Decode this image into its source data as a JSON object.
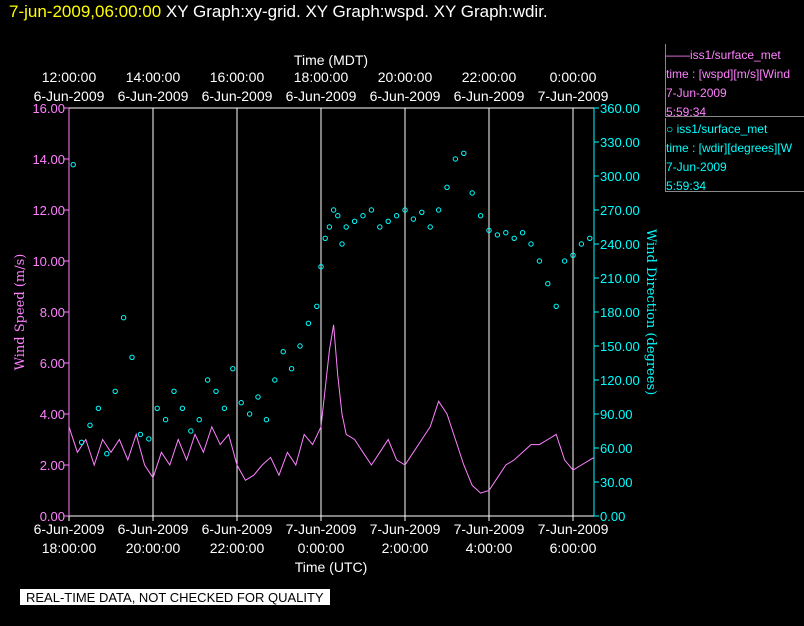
{
  "header": {
    "date": "7-jun-2009,06:00:00",
    "graphs": "XY Graph:xy-grid.  XY Graph:wspd.  XY Graph:wdir."
  },
  "legend": [
    {
      "marker": "——",
      "lines": [
        "iss1/surface_met",
        "time : [wspd][m/s][Wind",
        "7-Jun-2009",
        "5:59:34"
      ]
    },
    {
      "marker": "○",
      "lines": [
        "iss1/surface_met",
        "time : [wdir][degrees][W",
        "7-Jun-2009",
        "5:59:34"
      ]
    }
  ],
  "notice": "REAL-TIME DATA, NOT CHECKED FOR QUALITY",
  "colors": {
    "background": "#000000",
    "wspd": "#ff80ff",
    "wdir": "#00ffff",
    "grid": "#ffffff",
    "date": "#ffff00"
  },
  "chart_data": {
    "type": "line+scatter",
    "top_axis": {
      "label": "Time (MDT)",
      "ticks": [
        {
          "x": 0,
          "time": "12:00:00",
          "date": "6-Jun-2009"
        },
        {
          "x": 2,
          "time": "14:00:00",
          "date": "6-Jun-2009"
        },
        {
          "x": 4,
          "time": "16:00:00",
          "date": "6-Jun-2009"
        },
        {
          "x": 6,
          "time": "18:00:00",
          "date": "6-Jun-2009"
        },
        {
          "x": 8,
          "time": "20:00:00",
          "date": "6-Jun-2009"
        },
        {
          "x": 10,
          "time": "22:00:00",
          "date": "6-Jun-2009"
        },
        {
          "x": 12,
          "time": "0:00:00",
          "date": "7-Jun-2009"
        }
      ]
    },
    "bottom_axis": {
      "label": "Time (UTC)",
      "ticks": [
        {
          "x": 0,
          "date": "6-Jun-2009",
          "time": "18:00:00"
        },
        {
          "x": 2,
          "date": "6-Jun-2009",
          "time": "20:00:00"
        },
        {
          "x": 4,
          "date": "6-Jun-2009",
          "time": "22:00:00"
        },
        {
          "x": 6,
          "date": "7-Jun-2009",
          "time": "0:00:00"
        },
        {
          "x": 8,
          "date": "7-Jun-2009",
          "time": "2:00:00"
        },
        {
          "x": 10,
          "date": "7-Jun-2009",
          "time": "4:00:00"
        },
        {
          "x": 12,
          "date": "7-Jun-2009",
          "time": "6:00:00"
        }
      ]
    },
    "xlim": [
      0,
      12.5
    ],
    "y_left": {
      "label": "Wind Speed (m/s)",
      "ylim": [
        0,
        16
      ],
      "ticks": [
        "0.00",
        "2.00",
        "4.00",
        "6.00",
        "8.00",
        "10.00",
        "12.00",
        "14.00",
        "16.00"
      ]
    },
    "y_right": {
      "label": "Wind Direction (degrees)",
      "ylim": [
        0,
        360
      ],
      "ticks": [
        "0.00",
        "30.00",
        "60.00",
        "90.00",
        "120.00",
        "150.00",
        "180.00",
        "210.00",
        "240.00",
        "270.00",
        "300.00",
        "330.00",
        "360.00"
      ]
    },
    "grid": "vertical lines at each time tick",
    "series": [
      {
        "name": "iss1/surface_met wspd",
        "style": "line",
        "axis": "left",
        "points": [
          [
            0,
            3.5
          ],
          [
            0.2,
            2.5
          ],
          [
            0.4,
            3.0
          ],
          [
            0.6,
            2.0
          ],
          [
            0.8,
            3.0
          ],
          [
            1.0,
            2.5
          ],
          [
            1.2,
            3.0
          ],
          [
            1.4,
            2.2
          ],
          [
            1.6,
            3.2
          ],
          [
            1.8,
            2.0
          ],
          [
            2.0,
            1.5
          ],
          [
            2.2,
            2.5
          ],
          [
            2.4,
            2.0
          ],
          [
            2.6,
            3.0
          ],
          [
            2.8,
            2.2
          ],
          [
            3.0,
            3.2
          ],
          [
            3.2,
            2.5
          ],
          [
            3.4,
            3.5
          ],
          [
            3.6,
            2.8
          ],
          [
            3.8,
            3.2
          ],
          [
            4.0,
            2.0
          ],
          [
            4.2,
            1.4
          ],
          [
            4.4,
            1.6
          ],
          [
            4.6,
            2.0
          ],
          [
            4.8,
            2.3
          ],
          [
            5.0,
            1.6
          ],
          [
            5.2,
            2.5
          ],
          [
            5.4,
            2.0
          ],
          [
            5.6,
            3.2
          ],
          [
            5.8,
            2.8
          ],
          [
            6.0,
            3.5
          ],
          [
            6.1,
            5.0
          ],
          [
            6.2,
            6.5
          ],
          [
            6.3,
            7.5
          ],
          [
            6.4,
            5.5
          ],
          [
            6.5,
            4.0
          ],
          [
            6.6,
            3.2
          ],
          [
            6.8,
            3.0
          ],
          [
            7.0,
            2.5
          ],
          [
            7.2,
            2.0
          ],
          [
            7.4,
            2.5
          ],
          [
            7.6,
            3.0
          ],
          [
            7.8,
            2.2
          ],
          [
            8.0,
            2.0
          ],
          [
            8.2,
            2.5
          ],
          [
            8.4,
            3.0
          ],
          [
            8.6,
            3.5
          ],
          [
            8.8,
            4.5
          ],
          [
            9.0,
            4.0
          ],
          [
            9.2,
            3.0
          ],
          [
            9.4,
            2.0
          ],
          [
            9.6,
            1.2
          ],
          [
            9.8,
            0.9
          ],
          [
            10.0,
            1.0
          ],
          [
            10.2,
            1.5
          ],
          [
            10.4,
            2.0
          ],
          [
            10.6,
            2.2
          ],
          [
            10.8,
            2.5
          ],
          [
            11.0,
            2.8
          ],
          [
            11.2,
            2.8
          ],
          [
            11.4,
            3.0
          ],
          [
            11.6,
            3.2
          ],
          [
            11.8,
            2.2
          ],
          [
            12.0,
            1.8
          ],
          [
            12.2,
            2.0
          ],
          [
            12.4,
            2.2
          ],
          [
            12.5,
            2.3
          ]
        ]
      },
      {
        "name": "iss1/surface_met wdir",
        "style": "scatter",
        "axis": "right",
        "points": [
          [
            0.1,
            310
          ],
          [
            0.3,
            65
          ],
          [
            0.5,
            80
          ],
          [
            0.7,
            95
          ],
          [
            0.9,
            55
          ],
          [
            1.1,
            110
          ],
          [
            1.3,
            175
          ],
          [
            1.5,
            140
          ],
          [
            1.7,
            72
          ],
          [
            1.9,
            68
          ],
          [
            2.1,
            95
          ],
          [
            2.3,
            85
          ],
          [
            2.5,
            110
          ],
          [
            2.7,
            95
          ],
          [
            2.9,
            75
          ],
          [
            3.1,
            85
          ],
          [
            3.3,
            120
          ],
          [
            3.5,
            110
          ],
          [
            3.7,
            95
          ],
          [
            3.9,
            130
          ],
          [
            4.1,
            100
          ],
          [
            4.3,
            90
          ],
          [
            4.5,
            105
          ],
          [
            4.7,
            85
          ],
          [
            4.9,
            120
          ],
          [
            5.1,
            145
          ],
          [
            5.3,
            130
          ],
          [
            5.5,
            150
          ],
          [
            5.7,
            170
          ],
          [
            5.9,
            185
          ],
          [
            6.0,
            220
          ],
          [
            6.1,
            245
          ],
          [
            6.2,
            255
          ],
          [
            6.3,
            270
          ],
          [
            6.4,
            265
          ],
          [
            6.5,
            240
          ],
          [
            6.6,
            255
          ],
          [
            6.8,
            260
          ],
          [
            7.0,
            265
          ],
          [
            7.2,
            270
          ],
          [
            7.4,
            255
          ],
          [
            7.6,
            260
          ],
          [
            7.8,
            265
          ],
          [
            8.0,
            270
          ],
          [
            8.2,
            262
          ],
          [
            8.4,
            268
          ],
          [
            8.6,
            255
          ],
          [
            8.8,
            270
          ],
          [
            9.0,
            290
          ],
          [
            9.2,
            315
          ],
          [
            9.4,
            320
          ],
          [
            9.6,
            285
          ],
          [
            9.8,
            265
          ],
          [
            10.0,
            252
          ],
          [
            10.2,
            248
          ],
          [
            10.4,
            250
          ],
          [
            10.6,
            245
          ],
          [
            10.8,
            250
          ],
          [
            11.0,
            240
          ],
          [
            11.2,
            225
          ],
          [
            11.4,
            205
          ],
          [
            11.6,
            185
          ],
          [
            11.8,
            225
          ],
          [
            12.0,
            230
          ],
          [
            12.2,
            240
          ],
          [
            12.4,
            245
          ]
        ]
      }
    ]
  }
}
